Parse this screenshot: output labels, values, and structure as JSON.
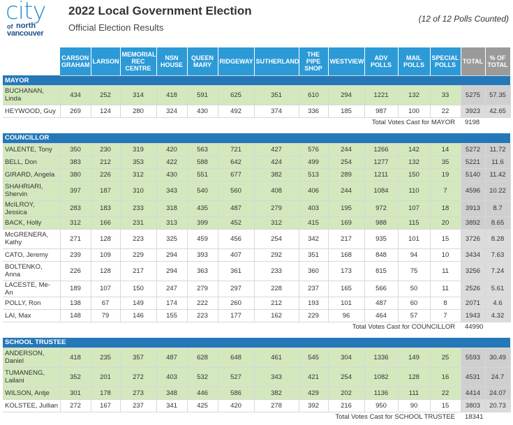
{
  "logo": {
    "city": "city",
    "of": "of",
    "north": "north",
    "vancouver": "vancouver"
  },
  "title": "2022 Local Government Election",
  "subtitle": "Official Election Results",
  "polls_counted": "(12 of 12 Polls Counted)",
  "columns": [
    "CARSON GRAHAM",
    "LARSON",
    "MEMORIAL REC CENTRE",
    "NSN HOUSE",
    "QUEEN MARY",
    "RIDGEWAY",
    "SUTHERLAND",
    "THE PIPE SHOP",
    "WESTVIEW",
    "ADV POLLS",
    "MAIL POLLS",
    "SPECIAL POLLS",
    "TOTAL",
    "% OF TOTAL"
  ],
  "sections": [
    {
      "name": "MAYOR",
      "rows": [
        {
          "name": "BUCHANAN, Linda",
          "elected": true,
          "values": [
            "434",
            "252",
            "314",
            "418",
            "591",
            "625",
            "351",
            "610",
            "294",
            "1221",
            "132",
            "33",
            "5275",
            "57.35"
          ]
        },
        {
          "name": "HEYWOOD, Guy",
          "elected": false,
          "values": [
            "269",
            "124",
            "280",
            "324",
            "430",
            "492",
            "374",
            "336",
            "185",
            "987",
            "100",
            "22",
            "3923",
            "42.65"
          ]
        }
      ],
      "total_label": "Total Votes Cast for MAYOR",
      "total_value": "9198"
    },
    {
      "name": "COUNCILLOR",
      "rows": [
        {
          "name": "VALENTE, Tony",
          "elected": true,
          "values": [
            "350",
            "230",
            "319",
            "420",
            "563",
            "721",
            "427",
            "576",
            "244",
            "1266",
            "142",
            "14",
            "5272",
            "11.72"
          ]
        },
        {
          "name": "BELL, Don",
          "elected": true,
          "values": [
            "383",
            "212",
            "353",
            "422",
            "588",
            "642",
            "424",
            "499",
            "254",
            "1277",
            "132",
            "35",
            "5221",
            "11.6"
          ]
        },
        {
          "name": "GIRARD, Angela",
          "elected": true,
          "values": [
            "380",
            "226",
            "312",
            "430",
            "551",
            "677",
            "382",
            "513",
            "289",
            "1211",
            "150",
            "19",
            "5140",
            "11.42"
          ]
        },
        {
          "name": "SHAHRIARI, Shervin",
          "elected": true,
          "values": [
            "397",
            "187",
            "310",
            "343",
            "540",
            "560",
            "408",
            "406",
            "244",
            "1084",
            "110",
            "7",
            "4596",
            "10.22"
          ]
        },
        {
          "name": "McILROY, Jessica",
          "elected": true,
          "values": [
            "283",
            "183",
            "233",
            "318",
            "435",
            "487",
            "279",
            "403",
            "195",
            "972",
            "107",
            "18",
            "3913",
            "8.7"
          ]
        },
        {
          "name": "BACK, Holly",
          "elected": true,
          "values": [
            "312",
            "166",
            "231",
            "313",
            "399",
            "452",
            "312",
            "415",
            "169",
            "988",
            "115",
            "20",
            "3892",
            "8.65"
          ]
        },
        {
          "name": "McGRENERA, Kathy",
          "elected": false,
          "values": [
            "271",
            "128",
            "223",
            "325",
            "459",
            "456",
            "254",
            "342",
            "217",
            "935",
            "101",
            "15",
            "3726",
            "8.28"
          ]
        },
        {
          "name": "CATO, Jeremy",
          "elected": false,
          "values": [
            "239",
            "109",
            "229",
            "294",
            "393",
            "407",
            "292",
            "351",
            "168",
            "848",
            "94",
            "10",
            "3434",
            "7.63"
          ]
        },
        {
          "name": "BOLTENKO, Anna",
          "elected": false,
          "values": [
            "226",
            "128",
            "217",
            "294",
            "363",
            "361",
            "233",
            "360",
            "173",
            "815",
            "75",
            "11",
            "3256",
            "7.24"
          ]
        },
        {
          "name": "LACESTE, Me-An",
          "elected": false,
          "values": [
            "189",
            "107",
            "150",
            "247",
            "279",
            "297",
            "228",
            "237",
            "165",
            "566",
            "50",
            "11",
            "2526",
            "5.61"
          ]
        },
        {
          "name": "POLLY, Ron",
          "elected": false,
          "values": [
            "138",
            "67",
            "149",
            "174",
            "222",
            "260",
            "212",
            "193",
            "101",
            "487",
            "60",
            "8",
            "2071",
            "4.6"
          ]
        },
        {
          "name": "LAI, Max",
          "elected": false,
          "values": [
            "148",
            "79",
            "146",
            "155",
            "223",
            "177",
            "162",
            "229",
            "96",
            "464",
            "57",
            "7",
            "1943",
            "4.32"
          ]
        }
      ],
      "total_label": "Total Votes Cast for COUNCILLOR",
      "total_value": "44990"
    },
    {
      "name": "SCHOOL TRUSTEE",
      "rows": [
        {
          "name": "ANDERSON, Daniel",
          "elected": true,
          "values": [
            "418",
            "235",
            "357",
            "487",
            "628",
            "648",
            "461",
            "545",
            "304",
            "1336",
            "149",
            "25",
            "5593",
            "30.49"
          ]
        },
        {
          "name": "TUMANENG, Lailani",
          "elected": true,
          "values": [
            "352",
            "201",
            "272",
            "403",
            "532",
            "527",
            "343",
            "421",
            "254",
            "1082",
            "128",
            "16",
            "4531",
            "24.7"
          ]
        },
        {
          "name": "WILSON, Antje",
          "elected": true,
          "values": [
            "301",
            "178",
            "273",
            "348",
            "446",
            "586",
            "382",
            "429",
            "202",
            "1136",
            "111",
            "22",
            "4414",
            "24.07"
          ]
        },
        {
          "name": "KOLSTEE, Jullian",
          "elected": false,
          "values": [
            "272",
            "167",
            "237",
            "341",
            "425",
            "420",
            "278",
            "392",
            "216",
            "950",
            "90",
            "15",
            "3803",
            "20.73"
          ]
        }
      ],
      "total_label": "Total Votes Cast for SCHOOL TRUSTEE",
      "total_value": "18341"
    }
  ],
  "colors": {
    "header_blue": "#2c9ad6",
    "section_blue": "#2478b8",
    "elected_green": "#d4e8be",
    "total_gray": "#dcdcdc"
  }
}
